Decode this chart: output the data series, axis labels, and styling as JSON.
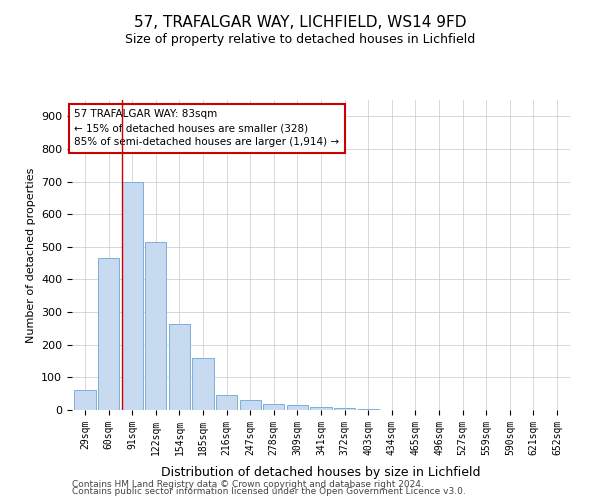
{
  "title": "57, TRAFALGAR WAY, LICHFIELD, WS14 9FD",
  "subtitle": "Size of property relative to detached houses in Lichfield",
  "xlabel": "Distribution of detached houses by size in Lichfield",
  "ylabel": "Number of detached properties",
  "footer_line1": "Contains HM Land Registry data © Crown copyright and database right 2024.",
  "footer_line2": "Contains public sector information licensed under the Open Government Licence v3.0.",
  "categories": [
    "29sqm",
    "60sqm",
    "91sqm",
    "122sqm",
    "154sqm",
    "185sqm",
    "216sqm",
    "247sqm",
    "278sqm",
    "309sqm",
    "341sqm",
    "372sqm",
    "403sqm",
    "434sqm",
    "465sqm",
    "496sqm",
    "527sqm",
    "559sqm",
    "590sqm",
    "621sqm",
    "652sqm"
  ],
  "values": [
    60,
    465,
    700,
    515,
    265,
    160,
    45,
    30,
    17,
    15,
    10,
    5,
    2,
    1,
    0,
    0,
    0,
    0,
    0,
    0,
    0
  ],
  "bar_color": "#c8daf0",
  "bar_edge_color": "#7ab0d8",
  "grid_color": "#c0c8d8",
  "background_color": "#ffffff",
  "property_line_color": "#cc0000",
  "property_bar_index": 2,
  "annotation_text": "57 TRAFALGAR WAY: 83sqm\n← 15% of detached houses are smaller (328)\n85% of semi-detached houses are larger (1,914) →",
  "annotation_box_color": "#ffffff",
  "annotation_box_edge": "#cc0000",
  "ylim": [
    0,
    950
  ],
  "yticks": [
    0,
    100,
    200,
    300,
    400,
    500,
    600,
    700,
    800,
    900
  ]
}
